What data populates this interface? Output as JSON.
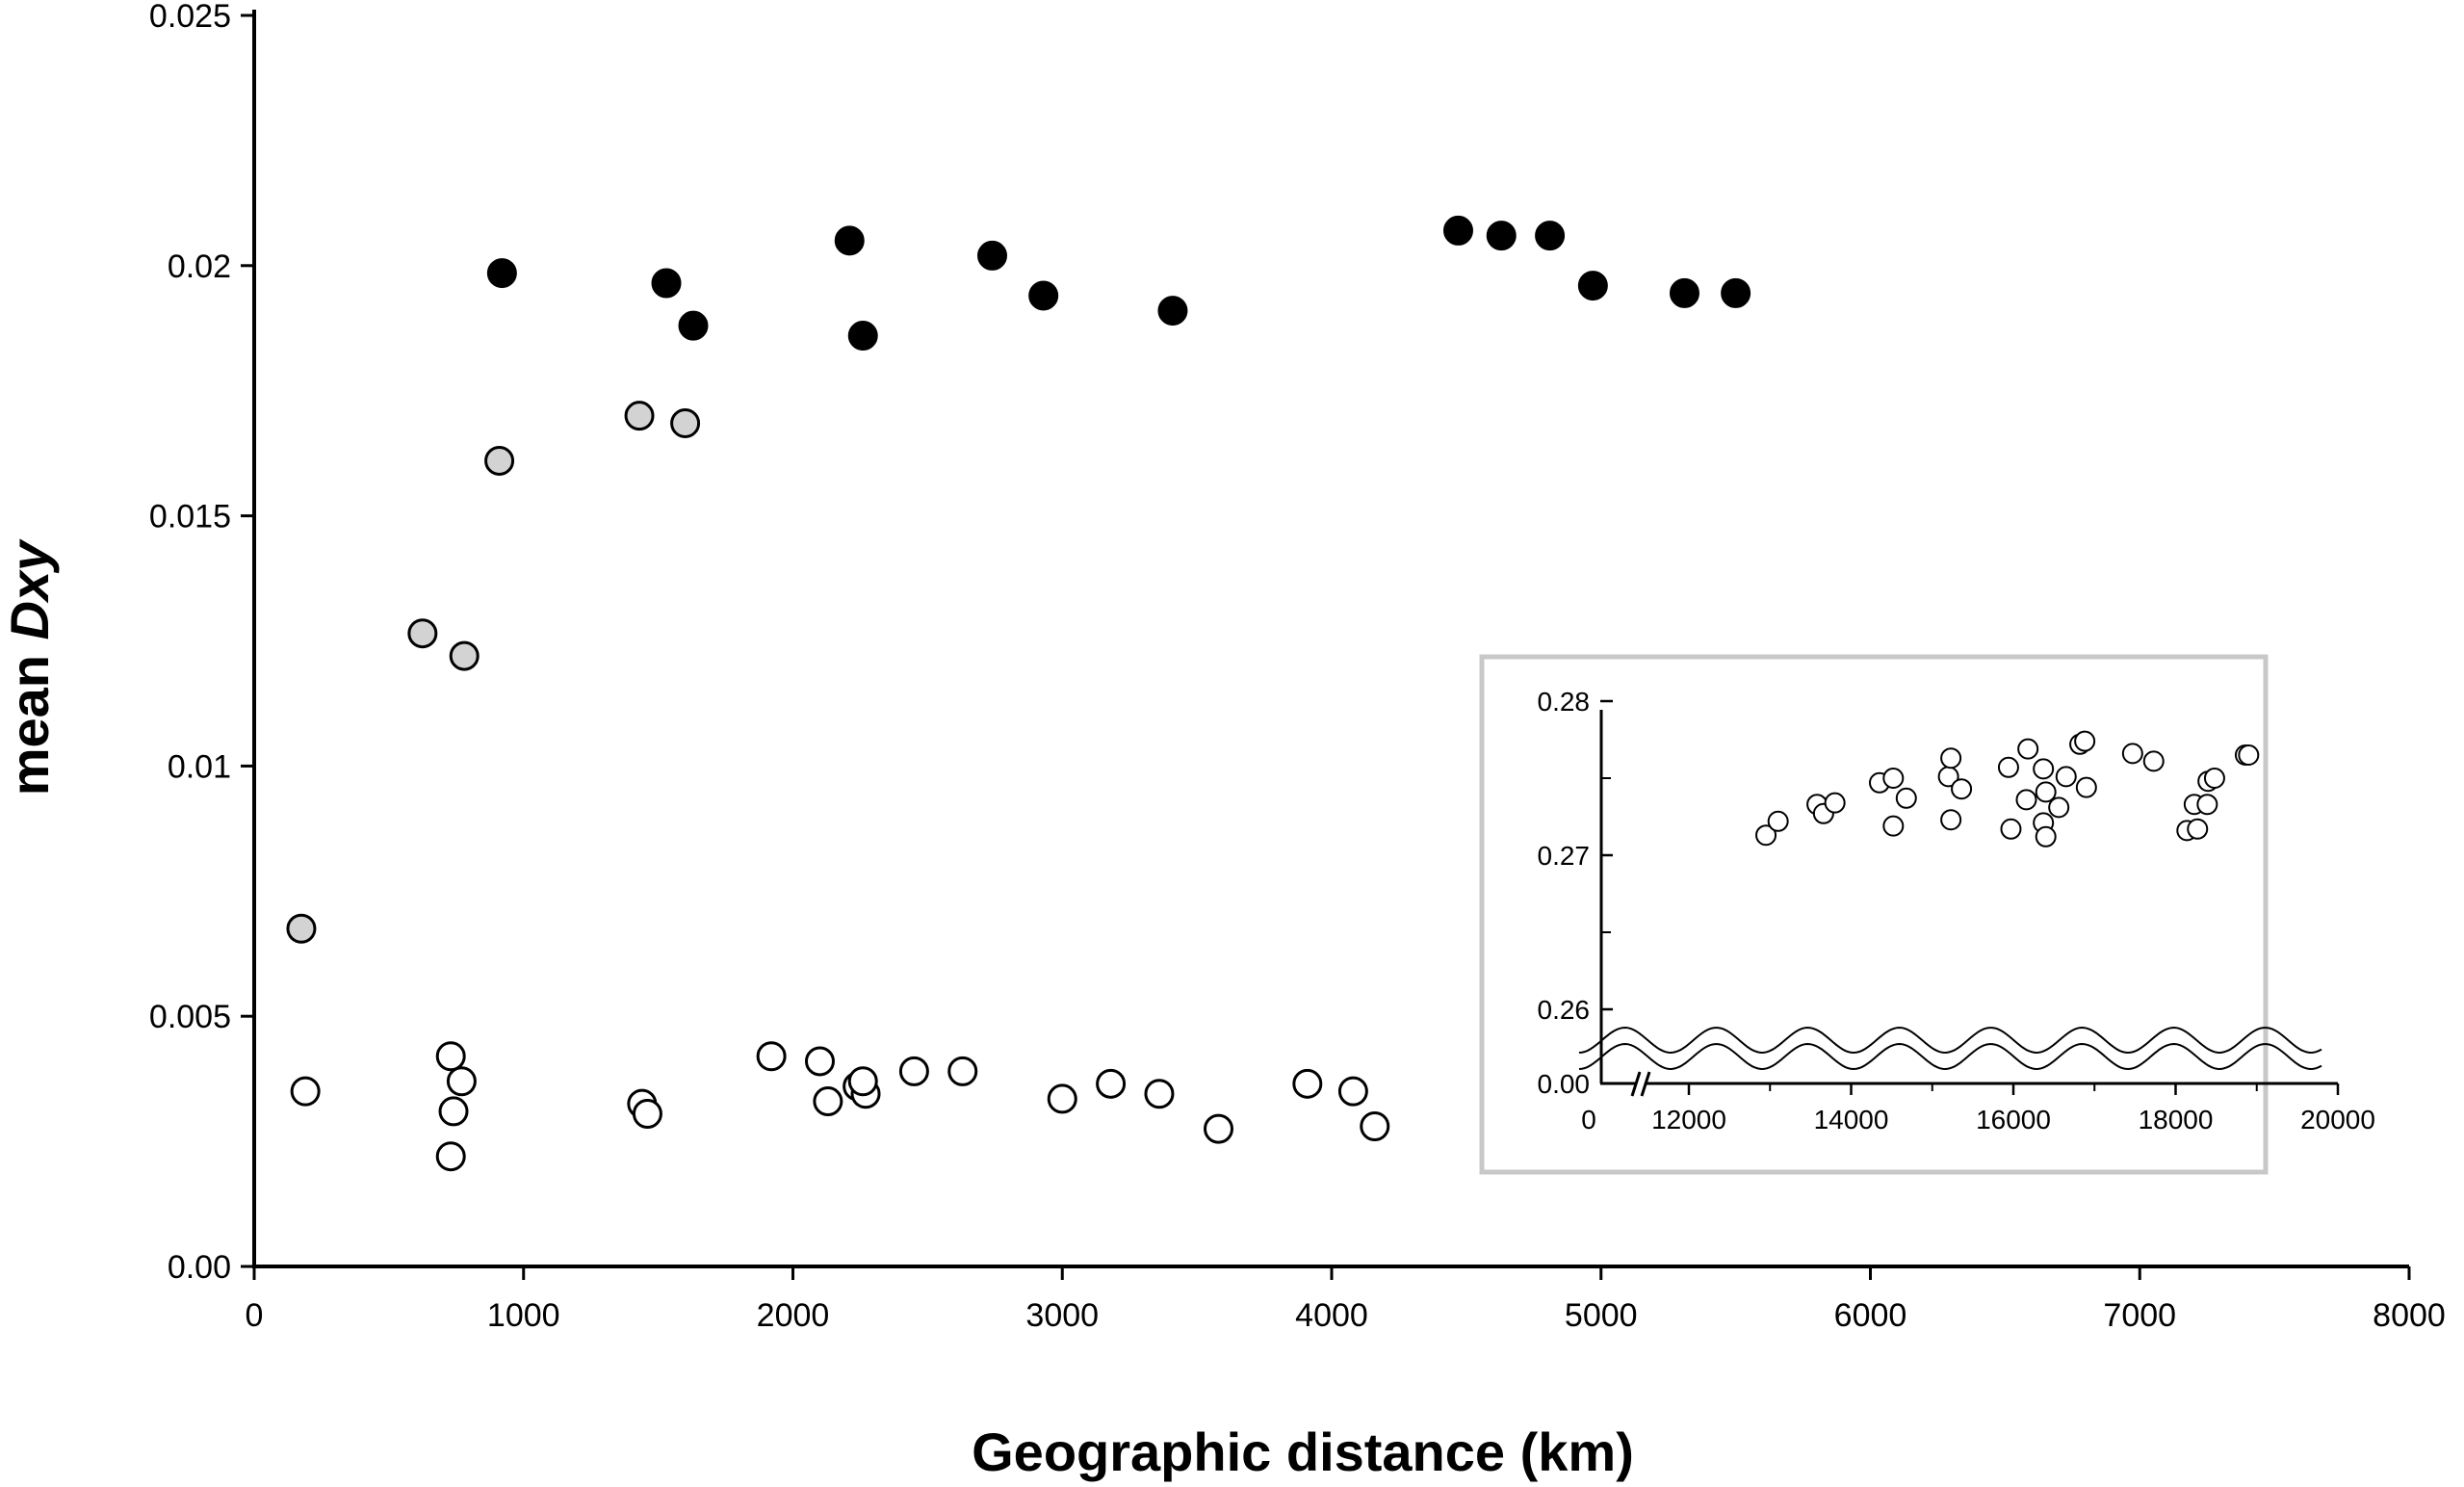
{
  "chart_data": [
    {
      "type": "scatter",
      "title": "",
      "xlabel": "Geographic distance (km)",
      "ylabel_prefix": "mean ",
      "ylabel_italic": "Dxy",
      "xlim": [
        0,
        8000
      ],
      "ylim": [
        0,
        0.025
      ],
      "xticks": [
        "0",
        "1000",
        "2000",
        "3000",
        "4000",
        "5000",
        "6000",
        "7000",
        "8000"
      ],
      "yticks": [
        "0.00",
        "0.005",
        "0.01",
        "0.015",
        "0.02",
        "0.025"
      ],
      "grid": false,
      "series": [
        {
          "marker": "filled-black",
          "points": [
            [
              920,
              0.01985
            ],
            [
              1530,
              0.01965
            ],
            [
              1630,
              0.0188
            ],
            [
              2210,
              0.0205
            ],
            [
              2260,
              0.0186
            ],
            [
              2740,
              0.0202
            ],
            [
              2930,
              0.0194
            ],
            [
              3410,
              0.0191
            ],
            [
              4470,
              0.0207
            ],
            [
              4630,
              0.0206
            ],
            [
              4810,
              0.0206
            ],
            [
              4970,
              0.0196
            ],
            [
              5310,
              0.01945
            ],
            [
              5500,
              0.01945
            ]
          ]
        },
        {
          "marker": "filled-grey",
          "points": [
            [
              175,
              0.00675
            ],
            [
              625,
              0.01265
            ],
            [
              780,
              0.0122
            ],
            [
              910,
              0.0161
            ],
            [
              1430,
              0.017
            ],
            [
              1600,
              0.01685
            ]
          ]
        },
        {
          "marker": "open",
          "points": [
            [
              190,
              0.0035
            ],
            [
              730,
              0.0042
            ],
            [
              770,
              0.0037
            ],
            [
              740,
              0.0031
            ],
            [
              730,
              0.0022
            ],
            [
              1440,
              0.00325
            ],
            [
              1460,
              0.00305
            ],
            [
              1920,
              0.0042
            ],
            [
              2100,
              0.0041
            ],
            [
              2130,
              0.0033
            ],
            [
              2240,
              0.0036
            ],
            [
              2270,
              0.00345
            ],
            [
              2260,
              0.0037
            ],
            [
              2450,
              0.0039
            ],
            [
              2630,
              0.0039
            ],
            [
              3000,
              0.00335
            ],
            [
              3180,
              0.00365
            ],
            [
              3360,
              0.00345
            ],
            [
              3580,
              0.00275
            ],
            [
              3910,
              0.00365
            ],
            [
              4080,
              0.0035
            ],
            [
              4160,
              0.0028
            ]
          ]
        }
      ]
    },
    {
      "type": "scatter",
      "role": "inset",
      "xlim_break": [
        0,
        11000
      ],
      "xlim": [
        11000,
        20000
      ],
      "ylim": [
        0.258,
        0.28
      ],
      "xticks": [
        "0",
        "12000",
        "14000",
        "16000",
        "18000",
        "20000"
      ],
      "yticks": [
        "0.00",
        "0.26",
        "0.27",
        "0.28"
      ],
      "axis_break": true,
      "series": [
        {
          "marker": "open",
          "points": [
            [
              12950,
              0.2713
            ],
            [
              13100,
              0.2722
            ],
            [
              13580,
              0.2733
            ],
            [
              13660,
              0.2727
            ],
            [
              13800,
              0.2734
            ],
            [
              14350,
              0.2747
            ],
            [
              14520,
              0.275
            ],
            [
              14520,
              0.2719
            ],
            [
              14680,
              0.2737
            ],
            [
              15200,
              0.2751
            ],
            [
              15230,
              0.2763
            ],
            [
              15230,
              0.2723
            ],
            [
              15360,
              0.2743
            ],
            [
              15940,
              0.2757
            ],
            [
              15970,
              0.2717
            ],
            [
              16160,
              0.2736
            ],
            [
              16180,
              0.2769
            ],
            [
              16370,
              0.2756
            ],
            [
              16370,
              0.2721
            ],
            [
              16400,
              0.2741
            ],
            [
              16400,
              0.2712
            ],
            [
              16560,
              0.2731
            ],
            [
              16650,
              0.2751
            ],
            [
              16820,
              0.2772
            ],
            [
              16880,
              0.2774
            ],
            [
              16900,
              0.2744
            ],
            [
              17470,
              0.2766
            ],
            [
              17730,
              0.2761
            ],
            [
              18140,
              0.2716
            ],
            [
              18230,
              0.2733
            ],
            [
              18270,
              0.2717
            ],
            [
              18390,
              0.2733
            ],
            [
              18400,
              0.2748
            ],
            [
              18480,
              0.275
            ],
            [
              18860,
              0.2765
            ],
            [
              18900,
              0.2765
            ]
          ]
        }
      ]
    }
  ]
}
